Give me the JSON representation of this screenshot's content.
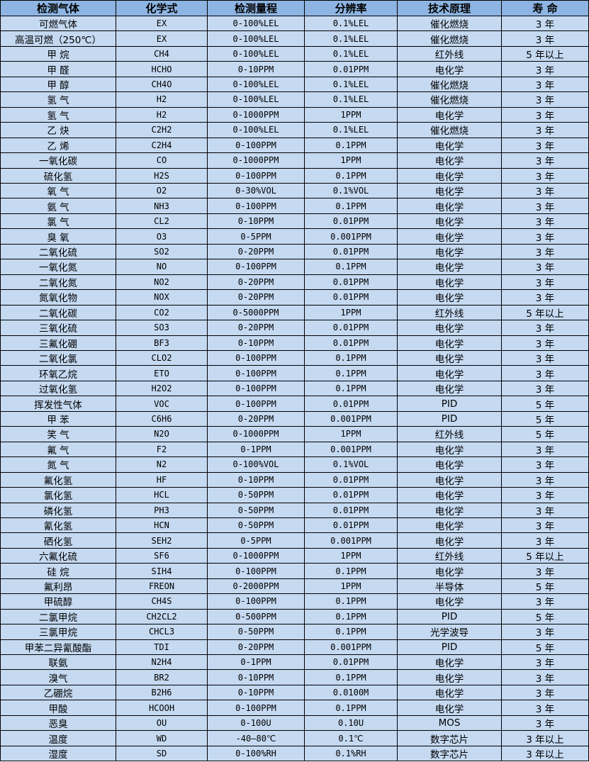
{
  "colors": {
    "header_bg": "#8db4e2",
    "row_bg": "#c5d9f1",
    "border": "#000000"
  },
  "table": {
    "headers": [
      "检测气体",
      "化学式",
      "检测量程",
      "分辨率",
      "技术原理",
      "寿 命"
    ],
    "rows": [
      [
        "可燃气体",
        "EX",
        "0-100%LEL",
        "0.1%LEL",
        "催化燃烧",
        "3 年"
      ],
      [
        "高温可燃（250℃）",
        "EX",
        "0-100%LEL",
        "0.1%LEL",
        "催化燃烧",
        "3 年"
      ],
      [
        "甲 烷",
        "CH4",
        "0-100%LEL",
        "0.1%LEL",
        "红外线",
        "5 年以上"
      ],
      [
        "甲 醛",
        "HCHO",
        "0-10PPM",
        "0.01PPM",
        "电化学",
        "3 年"
      ],
      [
        "甲 醇",
        "CH4O",
        "0-100%LEL",
        "0.1%LEL",
        "催化燃烧",
        "3 年"
      ],
      [
        "氢 气",
        "H2",
        "0-100%LEL",
        "0.1%LEL",
        "催化燃烧",
        "3 年"
      ],
      [
        "氢 气",
        "H2",
        "0-1000PPM",
        "1PPM",
        "电化学",
        "3 年"
      ],
      [
        "乙 炔",
        "C2H2",
        "0-100%LEL",
        "0.1%LEL",
        "催化燃烧",
        "3 年"
      ],
      [
        "乙 烯",
        "C2H4",
        "0-100PPM",
        "0.1PPM",
        "电化学",
        "3 年"
      ],
      [
        "一氧化碳",
        "CO",
        "0-1000PPM",
        "1PPM",
        "电化学",
        "3 年"
      ],
      [
        "硫化氢",
        "H2S",
        "0-100PPM",
        "0.1PPM",
        "电化学",
        "3 年"
      ],
      [
        "氧 气",
        "O2",
        "0-30%VOL",
        "0.1%VOL",
        "电化学",
        "3 年"
      ],
      [
        "氨 气",
        "NH3",
        "0-100PPM",
        "0.1PPM",
        "电化学",
        "3 年"
      ],
      [
        "氯 气",
        "CL2",
        "0-10PPM",
        "0.01PPM",
        "电化学",
        "3 年"
      ],
      [
        "臭 氧",
        "O3",
        "0-5PPM",
        "0.001PPM",
        "电化学",
        "3 年"
      ],
      [
        "二氧化硫",
        "SO2",
        "0-20PPM",
        "0.01PPM",
        "电化学",
        "3 年"
      ],
      [
        "一氧化氮",
        "NO",
        "0-100PPM",
        "0.1PPM",
        "电化学",
        "3 年"
      ],
      [
        "二氧化氮",
        "NO2",
        "0-20PPM",
        "0.01PPM",
        "电化学",
        "3 年"
      ],
      [
        "氮氧化物",
        "NOX",
        "0-20PPM",
        "0.01PPM",
        "电化学",
        "3 年"
      ],
      [
        "二氧化碳",
        "CO2",
        "0-5000PPM",
        "1PPM",
        "红外线",
        "5 年以上"
      ],
      [
        "三氧化硫",
        "SO3",
        "0-20PPM",
        "0.01PPM",
        "电化学",
        "3 年"
      ],
      [
        "三氟化硼",
        "BF3",
        "0-10PPM",
        "0.01PPM",
        "电化学",
        "3 年"
      ],
      [
        "二氧化氯",
        "CLO2",
        "0-100PPM",
        "0.1PPM",
        "电化学",
        "3 年"
      ],
      [
        "环氧乙烷",
        "ETO",
        "0-100PPM",
        "0.1PPM",
        "电化学",
        "3 年"
      ],
      [
        "过氧化氢",
        "H2O2",
        "0-100PPM",
        "0.1PPM",
        "电化学",
        "3 年"
      ],
      [
        "挥发性气体",
        "VOC",
        "0-100PPM",
        "0.01PPM",
        "PID",
        "5 年"
      ],
      [
        "甲 苯",
        "C6H6",
        "0-20PPM",
        "0.001PPM",
        "PID",
        "5 年"
      ],
      [
        "笑 气",
        "N2O",
        "0-1000PPM",
        "1PPM",
        "红外线",
        "5 年"
      ],
      [
        "氟 气",
        "F2",
        "0-1PPM",
        "0.001PPM",
        "电化学",
        "3 年"
      ],
      [
        "氮 气",
        "N2",
        "0-100%VOL",
        "0.1%VOL",
        "电化学",
        "3 年"
      ],
      [
        "氟化氢",
        "HF",
        "0-10PPM",
        "0.01PPM",
        "电化学",
        "3 年"
      ],
      [
        "氯化氢",
        "HCL",
        "0-50PPM",
        "0.01PPM",
        "电化学",
        "3 年"
      ],
      [
        "磷化氢",
        "PH3",
        "0-50PPM",
        "0.01PPM",
        "电化学",
        "3 年"
      ],
      [
        "氰化氢",
        "HCN",
        "0-50PPM",
        "0.01PPM",
        "电化学",
        "3 年"
      ],
      [
        "硒化氢",
        "SEH2",
        "0-5PPM",
        "0.001PPM",
        "电化学",
        "3 年"
      ],
      [
        "六氟化硫",
        "SF6",
        "0-1000PPM",
        "1PPM",
        "红外线",
        "5 年以上"
      ],
      [
        "硅 烷",
        "SIH4",
        "0-100PPM",
        "0.1PPM",
        "电化学",
        "3 年"
      ],
      [
        "氟利昂",
        "FREON",
        "0-2000PPM",
        "1PPM",
        "半导体",
        "5 年"
      ],
      [
        "甲硫醇",
        "CH4S",
        "0-100PPM",
        "0.1PPM",
        "电化学",
        "3 年"
      ],
      [
        "二氯甲烷",
        "CH2CL2",
        "0-500PPM",
        "0.1PPM",
        "PID",
        "5 年"
      ],
      [
        "三氯甲烷",
        "CHCL3",
        "0-50PPM",
        "0.1PPM",
        "光学波导",
        "3 年"
      ],
      [
        "甲苯二异氰酸酯",
        "TDI",
        "0-20PPM",
        "0.001PPM",
        "PID",
        "5 年"
      ],
      [
        "联氨",
        "N2H4",
        "0-1PPM",
        "0.01PPM",
        "电化学",
        "3 年"
      ],
      [
        "溴气",
        "BR2",
        "0-10PPM",
        "0.1PPM",
        "电化学",
        "3 年"
      ],
      [
        "乙硼烷",
        "B2H6",
        "0-10PPM",
        "0.0100M",
        "电化学",
        "3 年"
      ],
      [
        "甲酸",
        "HCOOH",
        "0-100PPM",
        "0.1PPM",
        "电化学",
        "3 年"
      ],
      [
        "恶臭",
        "OU",
        "0-100U",
        "0.10U",
        "MOS",
        "3 年"
      ],
      [
        "温度",
        "WD",
        "-40—80℃",
        "0.1℃",
        "数字芯片",
        "3 年以上"
      ],
      [
        "湿度",
        "SD",
        "0-100%RH",
        "0.1%RH",
        "数字芯片",
        "3 年以上"
      ]
    ]
  }
}
